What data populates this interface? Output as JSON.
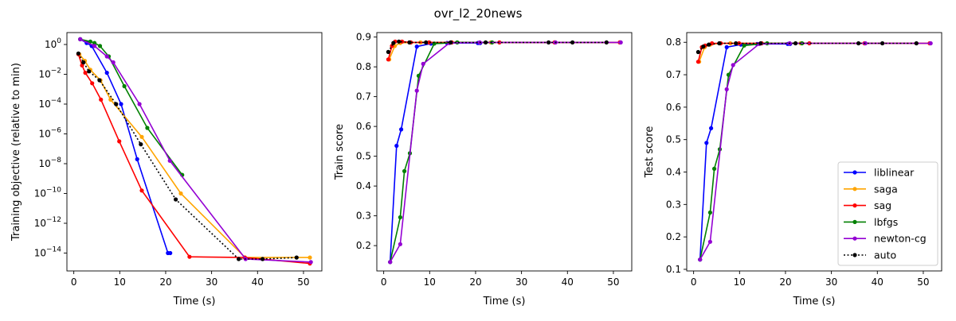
{
  "figure": {
    "title": "ovr_l2_20news"
  },
  "colors": {
    "liblinear": "#0000ff",
    "saga": "#ffa500",
    "sag": "#ff0000",
    "lbfgs": "#008000",
    "newton-cg": "#9400d3",
    "auto": "#000000"
  },
  "legend": {
    "placement": "lower-right of third panel",
    "entries": [
      "liblinear",
      "saga",
      "sag",
      "lbfgs",
      "newton-cg",
      "auto"
    ]
  },
  "chart_data": [
    {
      "type": "line",
      "title": "",
      "xlabel": "Time (s)",
      "ylabel": "Training objective (relative to min)",
      "yscale": "log",
      "xlim": [
        -1.5,
        54
      ],
      "ylim_exp": [
        -15.2,
        0.8
      ],
      "xticks": [
        0,
        10,
        20,
        30,
        40,
        50
      ],
      "yticks": [
        {
          "exp": 0,
          "base": "10",
          "label": "0"
        },
        {
          "exp": -2,
          "base": "10",
          "label": "−2"
        },
        {
          "exp": -4,
          "base": "10",
          "label": "−4"
        },
        {
          "exp": -6,
          "base": "10",
          "label": "−6"
        },
        {
          "exp": -8,
          "base": "10",
          "label": "−8"
        },
        {
          "exp": -10,
          "base": "10",
          "label": "−10"
        },
        {
          "exp": -12,
          "base": "10",
          "label": "−12"
        },
        {
          "exp": -14,
          "base": "10",
          "label": "−14"
        }
      ],
      "series": [
        {
          "name": "liblinear",
          "x": [
            1.4,
            2.8,
            3.9,
            7.2,
            10.3,
            13.8,
            20.5,
            21.0
          ],
          "y_exp": [
            0.35,
            0.1,
            -0.1,
            -1.9,
            -4.0,
            -7.7,
            -14.0,
            -14.0
          ]
        },
        {
          "name": "saga",
          "x": [
            1.2,
            2.4,
            3.6,
            5.8,
            8.0,
            14.8,
            23.3,
            37.3,
            51.4
          ],
          "y_exp": [
            -0.65,
            -1.1,
            -1.7,
            -2.4,
            -3.7,
            -6.2,
            -10.0,
            -14.3,
            -14.3
          ]
        },
        {
          "name": "sag",
          "x": [
            1.0,
            1.8,
            2.5,
            4.0,
            5.9,
            9.9,
            14.8,
            25.2,
            37.2,
            51.4
          ],
          "y_exp": [
            -0.65,
            -1.4,
            -1.9,
            -2.6,
            -3.7,
            -6.5,
            -9.8,
            -14.25,
            -14.3,
            -14.7
          ]
        },
        {
          "name": "lbfgs",
          "x": [
            1.4,
            3.6,
            4.5,
            5.7,
            7.6,
            11.0,
            16.0,
            23.6
          ],
          "y_exp": [
            0.35,
            0.2,
            0.1,
            -0.1,
            -0.8,
            -2.8,
            -5.6,
            -8.75
          ]
        },
        {
          "name": "newton-cg",
          "x": [
            1.4,
            4.5,
            7.2,
            8.6,
            14.3,
            20.9,
            37.4,
            51.6
          ],
          "y_exp": [
            0.35,
            -0.1,
            -0.8,
            -1.2,
            -4.0,
            -7.8,
            -14.4,
            -14.6
          ]
        },
        {
          "name": "auto",
          "x": [
            1.0,
            2.1,
            3.3,
            5.6,
            9.2,
            14.6,
            22.2,
            35.9,
            41.1,
            48.5
          ],
          "y_exp": [
            -0.6,
            -1.2,
            -1.8,
            -2.4,
            -4.0,
            -6.7,
            -10.4,
            -14.4,
            -14.4,
            -14.3
          ],
          "dashed": true
        }
      ]
    },
    {
      "type": "line",
      "title": "",
      "xlabel": "Time (s)",
      "ylabel": "Train score",
      "xlim": [
        -1.5,
        54
      ],
      "ylim": [
        0.115,
        0.915
      ],
      "xticks": [
        0,
        10,
        20,
        30,
        40,
        50
      ],
      "yticks": [
        0.2,
        0.3,
        0.4,
        0.5,
        0.6,
        0.7,
        0.8,
        0.9
      ],
      "series": [
        {
          "name": "liblinear",
          "x": [
            1.4,
            2.8,
            3.8,
            7.2,
            10.3,
            13.8,
            20.5,
            21.0
          ],
          "y": [
            0.145,
            0.535,
            0.59,
            0.868,
            0.878,
            0.88,
            0.88,
            0.88
          ]
        },
        {
          "name": "saga",
          "x": [
            1.2,
            2.4,
            3.6,
            5.8,
            8.0,
            14.8,
            23.3,
            37.3,
            51.4
          ],
          "y": [
            0.825,
            0.87,
            0.88,
            0.882,
            0.882,
            0.882,
            0.882,
            0.882,
            0.882
          ]
        },
        {
          "name": "sag",
          "x": [
            1.0,
            1.8,
            2.5,
            4.0,
            5.9,
            9.9,
            14.8,
            25.2,
            37.2,
            51.4
          ],
          "y": [
            0.825,
            0.87,
            0.885,
            0.885,
            0.882,
            0.882,
            0.882,
            0.882,
            0.882,
            0.882
          ]
        },
        {
          "name": "lbfgs",
          "x": [
            1.4,
            3.6,
            4.5,
            5.7,
            7.6,
            11.0,
            16.0,
            23.6
          ],
          "y": [
            0.145,
            0.295,
            0.45,
            0.51,
            0.77,
            0.878,
            0.882,
            0.882
          ]
        },
        {
          "name": "newton-cg",
          "x": [
            1.4,
            3.6,
            7.2,
            8.6,
            14.3,
            20.9,
            37.4,
            51.6
          ],
          "y": [
            0.145,
            0.205,
            0.72,
            0.81,
            0.88,
            0.882,
            0.882,
            0.882
          ]
        },
        {
          "name": "auto",
          "x": [
            1.0,
            2.1,
            3.3,
            5.6,
            9.2,
            14.6,
            22.2,
            35.9,
            41.1,
            48.5
          ],
          "y": [
            0.85,
            0.88,
            0.885,
            0.882,
            0.882,
            0.882,
            0.882,
            0.882,
            0.882,
            0.882
          ],
          "dashed": true
        }
      ]
    },
    {
      "type": "line",
      "title": "",
      "xlabel": "Time (s)",
      "ylabel": "Test score",
      "xlim": [
        -1.5,
        54
      ],
      "ylim": [
        0.095,
        0.83
      ],
      "xticks": [
        0,
        10,
        20,
        30,
        40,
        50
      ],
      "yticks": [
        0.1,
        0.2,
        0.3,
        0.4,
        0.5,
        0.6,
        0.7,
        0.8
      ],
      "series": [
        {
          "name": "liblinear",
          "x": [
            1.4,
            2.8,
            3.8,
            7.2,
            10.3,
            13.8,
            20.5,
            21.0
          ],
          "y": [
            0.13,
            0.49,
            0.535,
            0.785,
            0.793,
            0.795,
            0.795,
            0.795
          ]
        },
        {
          "name": "saga",
          "x": [
            1.2,
            2.4,
            3.6,
            5.8,
            8.0,
            14.8,
            23.3,
            37.3,
            51.4
          ],
          "y": [
            0.74,
            0.785,
            0.793,
            0.797,
            0.797,
            0.797,
            0.797,
            0.797,
            0.797
          ]
        },
        {
          "name": "sag",
          "x": [
            1.0,
            1.8,
            2.5,
            4.0,
            5.9,
            9.9,
            14.8,
            25.2,
            37.2,
            51.4
          ],
          "y": [
            0.74,
            0.785,
            0.79,
            0.797,
            0.797,
            0.797,
            0.797,
            0.797,
            0.797,
            0.797
          ]
        },
        {
          "name": "lbfgs",
          "x": [
            1.4,
            3.6,
            4.5,
            5.7,
            7.6,
            11.0,
            16.0,
            23.6
          ],
          "y": [
            0.13,
            0.275,
            0.41,
            0.47,
            0.7,
            0.79,
            0.797,
            0.797
          ]
        },
        {
          "name": "newton-cg",
          "x": [
            1.4,
            3.6,
            7.2,
            8.6,
            14.3,
            20.9,
            37.4,
            51.6
          ],
          "y": [
            0.13,
            0.185,
            0.655,
            0.73,
            0.795,
            0.797,
            0.797,
            0.797
          ]
        },
        {
          "name": "auto",
          "x": [
            1.0,
            2.1,
            3.3,
            5.6,
            9.2,
            14.6,
            22.2,
            35.9,
            41.1,
            48.5
          ],
          "y": [
            0.77,
            0.787,
            0.793,
            0.797,
            0.797,
            0.797,
            0.797,
            0.797,
            0.797,
            0.797
          ],
          "dashed": true
        }
      ]
    }
  ]
}
